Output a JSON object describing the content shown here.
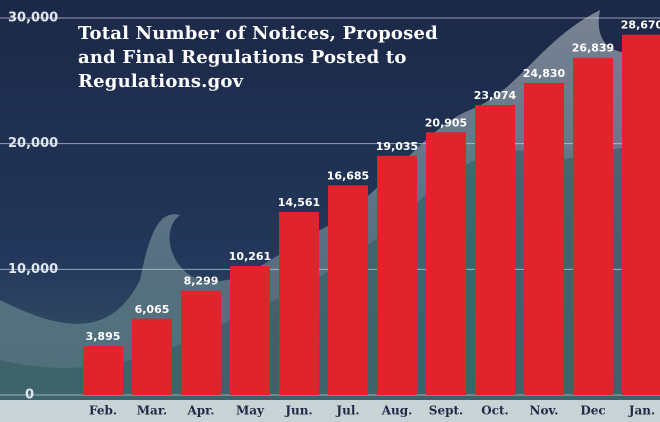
{
  "chart_data": {
    "type": "bar",
    "title": "Total Number of Notices, Proposed and Final Regulations Posted to Regulations.gov",
    "categories": [
      "Feb.",
      "Mar.",
      "Apr.",
      "May",
      "Jun.",
      "Jul.",
      "Aug.",
      "Sept.",
      "Oct.",
      "Nov.",
      "Dec",
      "Jan."
    ],
    "values": [
      3895,
      6065,
      8299,
      10261,
      14561,
      16685,
      19035,
      20905,
      23074,
      24830,
      26839,
      28670
    ],
    "value_labels": [
      "3,895",
      "6,065",
      "8,299",
      "10,261",
      "14,561",
      "16,685",
      "19,035",
      "20,905",
      "23,074",
      "24,830",
      "26,839",
      "28,670"
    ],
    "color": "#e0242c",
    "ylim": [
      0,
      30000
    ],
    "yticks": [
      0,
      {
        "value": 10000,
        "label": "10,000"
      },
      {
        "value": 20000,
        "label": "20,000"
      },
      {
        "value": 30000,
        "label": "30,000"
      }
    ],
    "grid": true
  }
}
